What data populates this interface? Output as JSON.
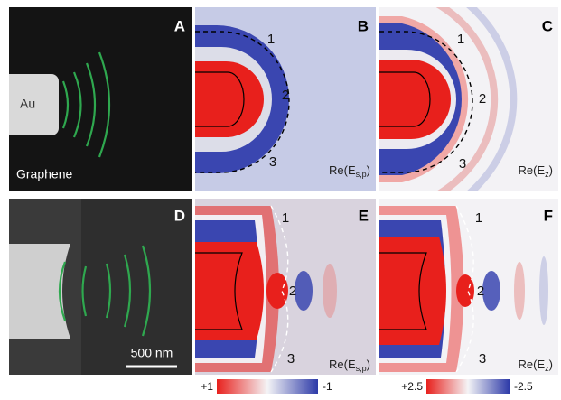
{
  "panels": [
    {
      "letter": "A",
      "labels": [
        "Au",
        "Graphene"
      ]
    },
    {
      "letter": "B",
      "numbers": [
        "1",
        "2",
        "3"
      ],
      "field": {
        "main": "Re(E",
        "sub": "s,p",
        "end": ")"
      }
    },
    {
      "letter": "C",
      "numbers": [
        "1",
        "2",
        "3"
      ],
      "field": {
        "main": "Re(E",
        "sub": "z",
        "end": ")"
      }
    },
    {
      "letter": "D",
      "scale_bar": "500 nm"
    },
    {
      "letter": "E",
      "numbers": [
        "1",
        "2",
        "3"
      ],
      "field": {
        "main": "Re(E",
        "sub": "s,p",
        "end": ")"
      }
    },
    {
      "letter": "F",
      "numbers": [
        "1",
        "2",
        "3"
      ],
      "field": {
        "main": "Re(E",
        "sub": "z",
        "end": ")"
      }
    }
  ],
  "colorbars": [
    {
      "max": "+1",
      "min": "-1"
    },
    {
      "max": "+2.5",
      "min": "-2.5"
    }
  ]
}
